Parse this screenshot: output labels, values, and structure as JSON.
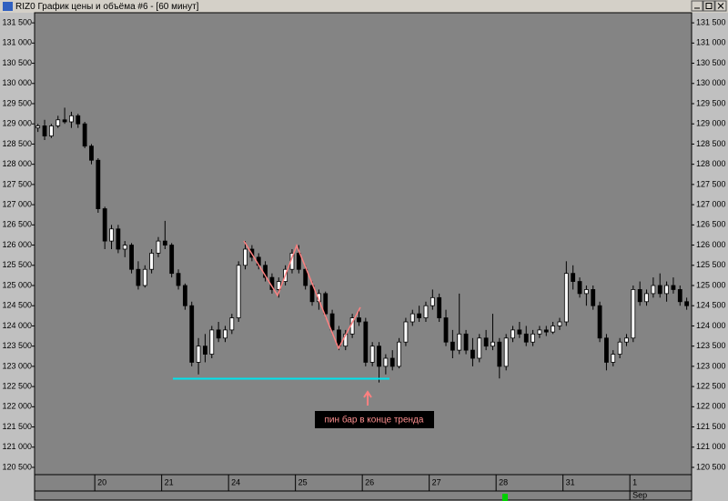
{
  "chart_data": {
    "type": "candlestick",
    "title": "RIZ0 График цены и объёма #6 - [60 минут]",
    "annotation": "пин бар в конце тренда",
    "month_label": "Sep",
    "ylim": [
      120320,
      131750
    ],
    "yticks": [
      {
        "value": 120500,
        "label": "120 500"
      },
      {
        "value": 121000,
        "label": "121 000"
      },
      {
        "value": 121500,
        "label": "121 500"
      },
      {
        "value": 122000,
        "label": "122 000"
      },
      {
        "value": 122500,
        "label": "122 500"
      },
      {
        "value": 123000,
        "label": "123 000"
      },
      {
        "value": 123500,
        "label": "123 500"
      },
      {
        "value": 124000,
        "label": "124 000"
      },
      {
        "value": 124500,
        "label": "124 500"
      },
      {
        "value": 125000,
        "label": "125 000"
      },
      {
        "value": 125500,
        "label": "125 500"
      },
      {
        "value": 126000,
        "label": "126 000"
      },
      {
        "value": 126500,
        "label": "126 500"
      },
      {
        "value": 127000,
        "label": "127 000"
      },
      {
        "value": 127500,
        "label": "127 500"
      },
      {
        "value": 128000,
        "label": "128 000"
      },
      {
        "value": 128500,
        "label": "128 500"
      },
      {
        "value": 129000,
        "label": "129 000"
      },
      {
        "value": 129500,
        "label": "129 500"
      },
      {
        "value": 130000,
        "label": "130 000"
      },
      {
        "value": 130500,
        "label": "130 500"
      },
      {
        "value": 131000,
        "label": "131 000"
      },
      {
        "value": 131500,
        "label": "131 500"
      }
    ],
    "categories": [
      null,
      null,
      null,
      null,
      null,
      null,
      null,
      null,
      null,
      "20",
      null,
      null,
      null,
      null,
      null,
      null,
      null,
      null,
      null,
      "21",
      null,
      null,
      null,
      null,
      null,
      null,
      null,
      null,
      null,
      "24",
      null,
      null,
      null,
      null,
      null,
      null,
      null,
      null,
      null,
      "25",
      null,
      null,
      null,
      null,
      null,
      null,
      null,
      null,
      null,
      "26",
      null,
      null,
      null,
      null,
      null,
      null,
      null,
      null,
      null,
      "27",
      null,
      null,
      null,
      null,
      null,
      null,
      null,
      null,
      null,
      "28",
      null,
      null,
      null,
      null,
      null,
      null,
      null,
      null,
      null,
      "31",
      null,
      null,
      null,
      null,
      null,
      null,
      null,
      null,
      null,
      "1",
      null,
      null,
      null,
      null,
      null,
      null,
      null,
      null
    ],
    "ohlc": [
      [
        128900,
        129000,
        128800,
        128950
      ],
      [
        128950,
        129100,
        128600,
        128700
      ],
      [
        128700,
        129000,
        128650,
        128950
      ],
      [
        128950,
        129200,
        128900,
        129100
      ],
      [
        129100,
        129400,
        129000,
        129050
      ],
      [
        129050,
        129300,
        128900,
        129200
      ],
      [
        129200,
        129250,
        128900,
        129000
      ],
      [
        129000,
        129050,
        128400,
        128450
      ],
      [
        128450,
        128500,
        128000,
        128100
      ],
      [
        128100,
        128150,
        126800,
        126900
      ],
      [
        126900,
        126950,
        125900,
        126100
      ],
      [
        126100,
        126500,
        125900,
        126400
      ],
      [
        126400,
        126500,
        125800,
        125900
      ],
      [
        125900,
        126100,
        125700,
        126000
      ],
      [
        126000,
        126050,
        125300,
        125400
      ],
      [
        125400,
        125600,
        124900,
        125000
      ],
      [
        125000,
        125500,
        124950,
        125400
      ],
      [
        125400,
        125900,
        125300,
        125800
      ],
      [
        125800,
        126200,
        125700,
        126100
      ],
      [
        126100,
        126600,
        125900,
        126000
      ],
      [
        126000,
        126050,
        125200,
        125300
      ],
      [
        125300,
        125400,
        124900,
        125000
      ],
      [
        125000,
        125050,
        124400,
        124500
      ],
      [
        124500,
        124600,
        123000,
        123100
      ],
      [
        123100,
        123700,
        122800,
        123500
      ],
      [
        123500,
        123800,
        123100,
        123300
      ],
      [
        123300,
        124000,
        123200,
        123900
      ],
      [
        123900,
        124100,
        123600,
        123700
      ],
      [
        123700,
        124000,
        123600,
        123900
      ],
      [
        123900,
        124300,
        123800,
        124200
      ],
      [
        124200,
        125600,
        124100,
        125500
      ],
      [
        125500,
        126100,
        125400,
        125900
      ],
      [
        125900,
        126000,
        125600,
        125700
      ],
      [
        125700,
        125800,
        125400,
        125500
      ],
      [
        125500,
        125600,
        125100,
        125200
      ],
      [
        125200,
        125300,
        124800,
        124900
      ],
      [
        124900,
        125200,
        124700,
        125100
      ],
      [
        125100,
        125500,
        125000,
        125400
      ],
      [
        125400,
        125900,
        125300,
        125800
      ],
      [
        125800,
        126000,
        125300,
        125400
      ],
      [
        125400,
        125500,
        124900,
        125000
      ],
      [
        125000,
        125100,
        124500,
        124600
      ],
      [
        124600,
        124900,
        124400,
        124800
      ],
      [
        124800,
        124850,
        124200,
        124300
      ],
      [
        124300,
        124400,
        123800,
        123900
      ],
      [
        123900,
        124000,
        123400,
        123500
      ],
      [
        123500,
        123900,
        123400,
        123800
      ],
      [
        123800,
        124300,
        123700,
        124200
      ],
      [
        124200,
        124400,
        124000,
        124100
      ],
      [
        124100,
        124200,
        123000,
        123100
      ],
      [
        123100,
        123600,
        123000,
        123500
      ],
      [
        123500,
        123600,
        122600,
        123000
      ],
      [
        123000,
        123300,
        122800,
        123200
      ],
      [
        123200,
        123400,
        122900,
        123000
      ],
      [
        123000,
        123700,
        122950,
        123600
      ],
      [
        123600,
        124200,
        123500,
        124100
      ],
      [
        124100,
        124400,
        124000,
        124300
      ],
      [
        124300,
        124500,
        124100,
        124200
      ],
      [
        124200,
        124600,
        124100,
        124500
      ],
      [
        124500,
        124900,
        124400,
        124700
      ],
      [
        124700,
        124800,
        124100,
        124200
      ],
      [
        124200,
        124400,
        123500,
        123600
      ],
      [
        123600,
        123900,
        123200,
        123400
      ],
      [
        123400,
        124800,
        123300,
        123800
      ],
      [
        123800,
        123900,
        123300,
        123400
      ],
      [
        123400,
        123700,
        123000,
        123200
      ],
      [
        123200,
        123800,
        123100,
        123700
      ],
      [
        123700,
        123900,
        123400,
        123500
      ],
      [
        123500,
        124300,
        123400,
        123600
      ],
      [
        123600,
        123700,
        122700,
        123000
      ],
      [
        123000,
        123800,
        122900,
        123700
      ],
      [
        123700,
        124000,
        123600,
        123900
      ],
      [
        123900,
        124100,
        123700,
        123800
      ],
      [
        123800,
        124000,
        123500,
        123600
      ],
      [
        123600,
        123900,
        123500,
        123800
      ],
      [
        123800,
        124000,
        123700,
        123900
      ],
      [
        123900,
        124000,
        123750,
        123850
      ],
      [
        123850,
        124100,
        123800,
        124000
      ],
      [
        124000,
        124200,
        123900,
        124100
      ],
      [
        124100,
        125600,
        124000,
        125300
      ],
      [
        125300,
        125500,
        124900,
        125100
      ],
      [
        125100,
        125200,
        124700,
        124800
      ],
      [
        124800,
        125000,
        124500,
        124900
      ],
      [
        124900,
        125000,
        124400,
        124500
      ],
      [
        124500,
        124600,
        123600,
        123700
      ],
      [
        123700,
        123800,
        122900,
        123100
      ],
      [
        123100,
        123400,
        123000,
        123300
      ],
      [
        123300,
        123700,
        123200,
        123600
      ],
      [
        123600,
        123800,
        123500,
        123700
      ],
      [
        123700,
        125000,
        123600,
        124900
      ],
      [
        124900,
        125100,
        124500,
        124600
      ],
      [
        124600,
        124900,
        124500,
        124800
      ],
      [
        124800,
        125200,
        124700,
        125000
      ],
      [
        125000,
        125300,
        124700,
        124800
      ],
      [
        124800,
        125100,
        124600,
        125000
      ],
      [
        125000,
        125200,
        124800,
        124900
      ],
      [
        124900,
        125000,
        124500,
        124600
      ],
      [
        124600,
        124700,
        124400,
        124500
      ]
    ],
    "up_color": "#ffffff",
    "down_color": "#000000",
    "background": "#848484"
  }
}
